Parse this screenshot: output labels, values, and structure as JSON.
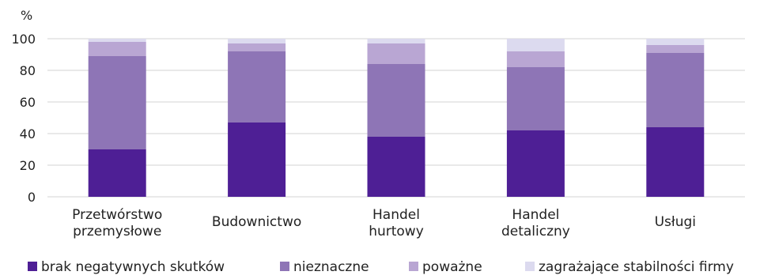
{
  "chart_data": {
    "type": "bar",
    "stacked": true,
    "y_unit": "%",
    "categories": [
      "Przetwórstwo\nprzemysłowe",
      "Budownictwo",
      "Handel\nhurtowy",
      "Handel\ndetaliczny",
      "Usługi"
    ],
    "series": [
      {
        "name": "brak negatywnych skutków",
        "color": "#4e1f95",
        "values": [
          30,
          47,
          38,
          42,
          44
        ]
      },
      {
        "name": "nieznaczne",
        "color": "#8e75b6",
        "values": [
          59,
          45,
          46,
          40,
          47
        ]
      },
      {
        "name": "poważne",
        "color": "#b9a6d3",
        "values": [
          9,
          5,
          13,
          10,
          5
        ]
      },
      {
        "name": "zagrażające stabilności firmy",
        "color": "#dcdaef",
        "values": [
          2,
          3,
          3,
          8,
          4
        ]
      }
    ],
    "ylim": [
      0,
      100
    ],
    "yticks": [
      0,
      20,
      40,
      60,
      80,
      100
    ],
    "grid": true,
    "gridline_color": "#d3d3d3",
    "legend_position": "bottom"
  }
}
